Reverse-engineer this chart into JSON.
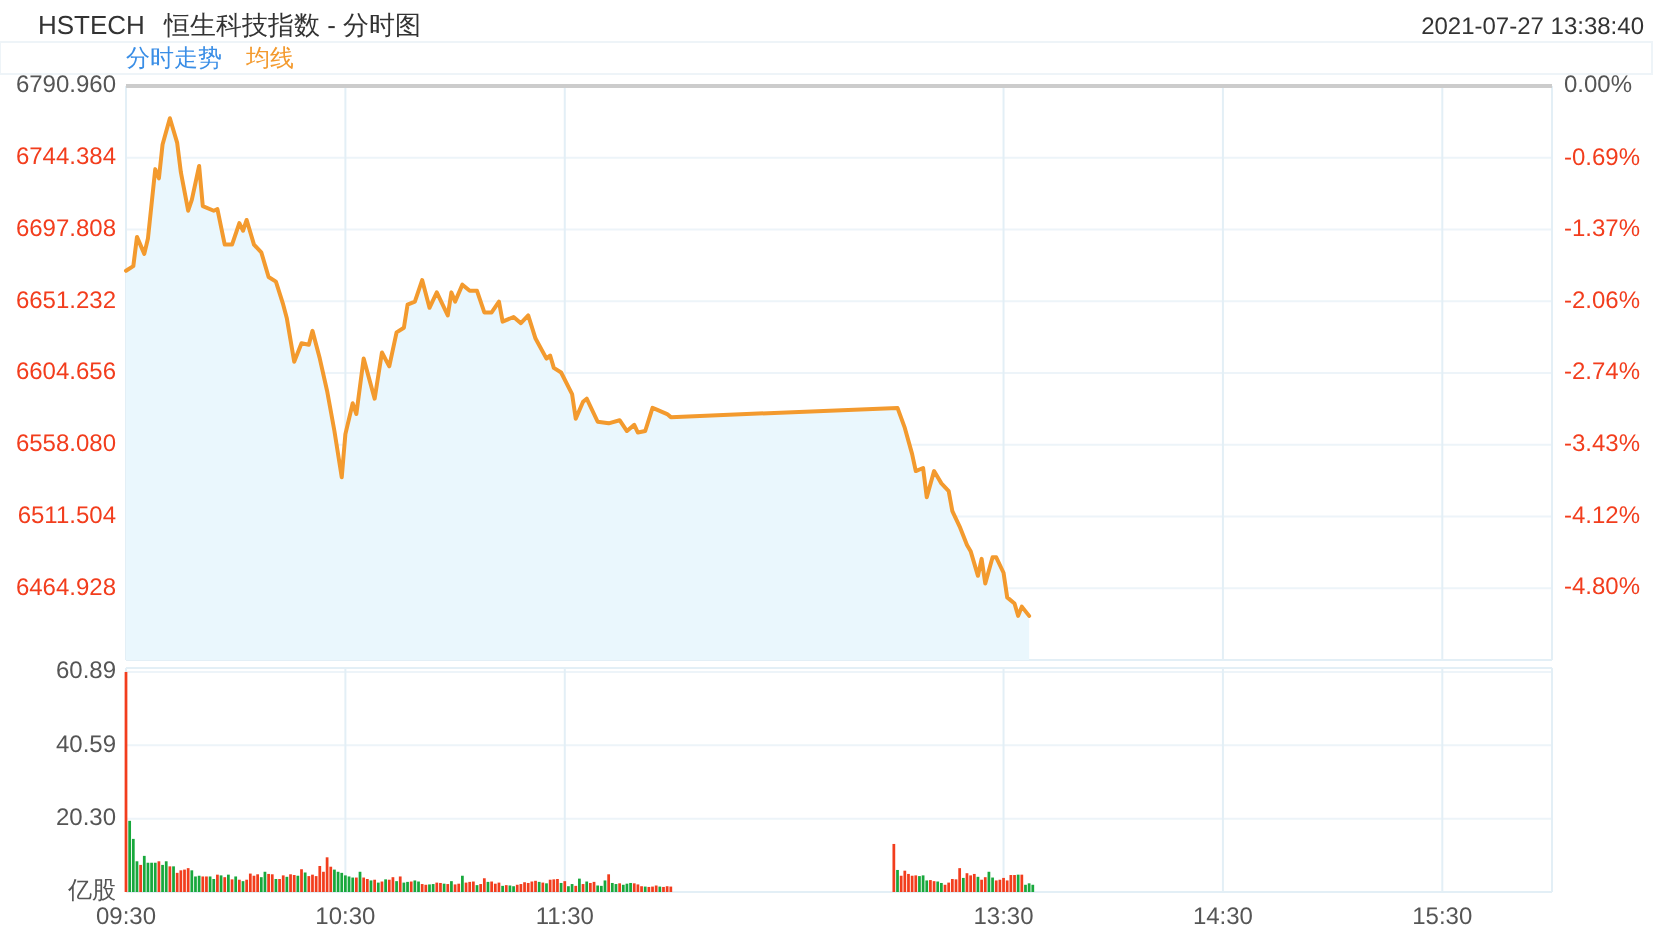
{
  "chart_data": [
    {
      "type": "area",
      "title": "HSTECH",
      "subtitle": "恒生科技指数 - 分时图",
      "annotations": [
        "2021-07-27 13:38:40",
        "分时走势"
      ],
      "grid": true,
      "tick_labels": "y",
      "xlim": [
        "2021-07-27T09:30",
        "2021-07-27T16:00"
      ],
      "xticks": [
        {
          "value": "2021-07-27T09:30",
          "label": null
        },
        {
          "value": "2021-07-27T10:30",
          "label": null
        },
        {
          "value": "2021-07-27T11:30",
          "label": null
        },
        {
          "value": "2021-07-27T13:30",
          "label": null
        },
        {
          "value": "2021-07-27T14:30",
          "label": null
        },
        {
          "value": "2021-07-27T15:30",
          "label": null
        }
      ],
      "ylim": [
        6418.352,
        6790.96
      ],
      "yticks": [
        {
          "value": 6464.928,
          "label": "6464.928"
        },
        {
          "value": 6511.504,
          "label": "6511.504"
        },
        {
          "value": 6558.08,
          "label": "6558.080"
        },
        {
          "value": 6604.656,
          "label": "6604.656"
        },
        {
          "value": 6651.232,
          "label": "6651.232"
        },
        {
          "value": 6697.808,
          "label": "6697.808"
        },
        {
          "value": 6744.384,
          "label": "6744.384"
        },
        {
          "value": 6790.96,
          "label": "6790.960"
        }
      ],
      "y2lim": [
        -5.487,
        0
      ],
      "y2ticks": [
        {
          "value": -4.8,
          "label": "-4.80%"
        },
        {
          "value": -4.12,
          "label": "-4.12%"
        },
        {
          "value": -3.43,
          "label": "-3.43%"
        },
        {
          "value": -2.74,
          "label": "-2.74%"
        },
        {
          "value": -2.06,
          "label": "-2.06%"
        },
        {
          "value": -1.37,
          "label": "-1.37%"
        },
        {
          "value": -0.69,
          "label": "-0.69%"
        },
        {
          "value": 0,
          "label": "0.00%"
        }
      ],
      "x": [
        "2021-07-27T09:30",
        "2021-07-27T09:32",
        "2021-07-27T09:33",
        "2021-07-27T09:35",
        "2021-07-27T09:36",
        "2021-07-27T09:38",
        "2021-07-27T09:39",
        "2021-07-27T09:40",
        "2021-07-27T09:42",
        "2021-07-27T09:44",
        "2021-07-27T09:45",
        "2021-07-27T09:47",
        "2021-07-27T09:48",
        "2021-07-27T09:50",
        "2021-07-27T09:51",
        "2021-07-27T09:54",
        "2021-07-27T09:55",
        "2021-07-27T09:57",
        "2021-07-27T09:59",
        "2021-07-27T10:01",
        "2021-07-27T10:02",
        "2021-07-27T10:03",
        "2021-07-27T10:05",
        "2021-07-27T10:07",
        "2021-07-27T10:09",
        "2021-07-27T10:11",
        "2021-07-27T10:13",
        "2021-07-27T10:14",
        "2021-07-27T10:16",
        "2021-07-27T10:18",
        "2021-07-27T10:20",
        "2021-07-27T10:21",
        "2021-07-27T10:23",
        "2021-07-27T10:25",
        "2021-07-27T10:27",
        "2021-07-27T10:29",
        "2021-07-27T10:30",
        "2021-07-27T10:32",
        "2021-07-27T10:33",
        "2021-07-27T10:35",
        "2021-07-27T10:38",
        "2021-07-27T10:40",
        "2021-07-27T10:42",
        "2021-07-27T10:44",
        "2021-07-27T10:46",
        "2021-07-27T10:47",
        "2021-07-27T10:49",
        "2021-07-27T10:51",
        "2021-07-27T10:53",
        "2021-07-27T10:55",
        "2021-07-27T10:58",
        "2021-07-27T10:59",
        "2021-07-27T11:00",
        "2021-07-27T11:02",
        "2021-07-27T11:04",
        "2021-07-27T11:06",
        "2021-07-27T11:08",
        "2021-07-27T11:10",
        "2021-07-27T11:12",
        "2021-07-27T11:13",
        "2021-07-27T11:16",
        "2021-07-27T11:18",
        "2021-07-27T11:20",
        "2021-07-27T11:22",
        "2021-07-27T11:25",
        "2021-07-27T11:26",
        "2021-07-27T11:27",
        "2021-07-27T11:29",
        "2021-07-27T11:32",
        "2021-07-27T11:33",
        "2021-07-27T11:35",
        "2021-07-27T11:36",
        "2021-07-27T11:39",
        "2021-07-27T11:42",
        "2021-07-27T11:45",
        "2021-07-27T11:47",
        "2021-07-27T11:49",
        "2021-07-27T11:50",
        "2021-07-27T11:52",
        "2021-07-27T11:54",
        "2021-07-27T11:55",
        "2021-07-27T11:58",
        "2021-07-27T11:59",
        "2021-07-27T13:01",
        "2021-07-27T13:03",
        "2021-07-27T13:05",
        "2021-07-27T13:06",
        "2021-07-27T13:08",
        "2021-07-27T13:09",
        "2021-07-27T13:11",
        "2021-07-27T13:13",
        "2021-07-27T13:15",
        "2021-07-27T13:16",
        "2021-07-27T13:18",
        "2021-07-27T13:20",
        "2021-07-27T13:21",
        "2021-07-27T13:23",
        "2021-07-27T13:24",
        "2021-07-27T13:25",
        "2021-07-27T13:27",
        "2021-07-27T13:28",
        "2021-07-27T13:30",
        "2021-07-27T13:31",
        "2021-07-27T13:33",
        "2021-07-27T13:34",
        "2021-07-27T13:35",
        "2021-07-27T13:37"
      ],
      "series": [
        {
          "name": "均线",
          "color": "#f39a2e",
          "values": [
            6671,
            6674,
            6693,
            6682,
            6692,
            6737,
            6731,
            6753,
            6770,
            6754,
            6735,
            6710,
            6717,
            6739,
            6713,
            6710,
            6711,
            6688,
            6688,
            6702,
            6697,
            6704,
            6688,
            6683,
            6667,
            6664,
            6649,
            6640,
            6612,
            6624,
            6623,
            6632,
            6614,
            6593,
            6567,
            6537,
            6565,
            6585,
            6578,
            6614,
            6588,
            6618,
            6609,
            6631,
            6634,
            6649,
            6651,
            6665,
            6647,
            6657,
            6642,
            6657,
            6651,
            6662,
            6658,
            6658,
            6644,
            6644,
            6651,
            6638,
            6641,
            6637,
            6642,
            6627,
            6614,
            6616,
            6608,
            6605,
            6591,
            6575,
            6586,
            6588,
            6573,
            6572,
            6574,
            6567,
            6571,
            6566,
            6567,
            6582,
            6581,
            6578,
            6576,
            6582,
            6569,
            6552,
            6541,
            6543,
            6524,
            6541,
            6533,
            6528,
            6515,
            6505,
            6493,
            6489,
            6473,
            6484,
            6468,
            6485,
            6485,
            6475,
            6459,
            6455,
            6447,
            6453,
            6447
          ]
        }
      ]
    },
    {
      "type": "bar",
      "grid": true,
      "xlim": [
        "2021-07-27T09:30",
        "2021-07-27T16:00"
      ],
      "xticks": [
        {
          "value": "2021-07-27T09:30",
          "label": "09:30"
        },
        {
          "value": "2021-07-27T10:30",
          "label": "10:30"
        },
        {
          "value": "2021-07-27T11:30",
          "label": "11:30"
        },
        {
          "value": "2021-07-27T13:30",
          "label": "13:30"
        },
        {
          "value": "2021-07-27T14:30",
          "label": "14:30"
        },
        {
          "value": "2021-07-27T15:30",
          "label": "15:30"
        }
      ],
      "ylim": [
        0,
        62
      ],
      "yticks": [
        {
          "value": 0,
          "label": "亿股"
        },
        {
          "value": 20.3,
          "label": "20.30"
        },
        40.59,
        60.89
      ],
      "x": [
        "2021-07-27T09:30",
        "2021-07-27T09:31",
        "2021-07-27T09:32",
        "2021-07-27T09:33",
        "2021-07-27T09:34",
        "2021-07-27T09:35",
        "2021-07-27T09:36",
        "2021-07-27T09:37",
        "2021-07-27T09:38",
        "2021-07-27T09:39",
        "2021-07-27T09:40",
        "2021-07-27T09:41",
        "2021-07-27T09:42",
        "2021-07-27T09:43",
        "2021-07-27T09:44",
        "2021-07-27T09:45",
        "2021-07-27T09:46",
        "2021-07-27T09:47",
        "2021-07-27T09:48",
        "2021-07-27T09:49",
        "2021-07-27T09:50",
        "2021-07-27T09:51",
        "2021-07-27T09:52",
        "2021-07-27T09:53",
        "2021-07-27T09:54",
        "2021-07-27T09:55",
        "2021-07-27T09:56",
        "2021-07-27T09:57",
        "2021-07-27T09:58",
        "2021-07-27T09:59",
        "2021-07-27T10:00",
        "2021-07-27T10:01",
        "2021-07-27T10:02",
        "2021-07-27T10:03",
        "2021-07-27T10:04",
        "2021-07-27T10:05",
        "2021-07-27T10:06",
        "2021-07-27T10:07",
        "2021-07-27T10:08",
        "2021-07-27T10:09",
        "2021-07-27T10:10",
        "2021-07-27T10:11",
        "2021-07-27T10:12",
        "2021-07-27T10:13",
        "2021-07-27T10:14",
        "2021-07-27T10:15",
        "2021-07-27T10:16",
        "2021-07-27T10:17",
        "2021-07-27T10:18",
        "2021-07-27T10:19",
        "2021-07-27T10:20",
        "2021-07-27T10:21",
        "2021-07-27T10:22",
        "2021-07-27T10:23",
        "2021-07-27T10:24",
        "2021-07-27T10:25",
        "2021-07-27T10:26",
        "2021-07-27T10:27",
        "2021-07-27T10:28",
        "2021-07-27T10:29",
        "2021-07-27T10:30",
        "2021-07-27T10:31",
        "2021-07-27T10:32",
        "2021-07-27T10:33",
        "2021-07-27T10:34",
        "2021-07-27T10:35",
        "2021-07-27T10:36",
        "2021-07-27T10:37",
        "2021-07-27T10:38",
        "2021-07-27T10:39",
        "2021-07-27T10:40",
        "2021-07-27T10:41",
        "2021-07-27T10:42",
        "2021-07-27T10:43",
        "2021-07-27T10:44",
        "2021-07-27T10:45",
        "2021-07-27T10:46",
        "2021-07-27T10:47",
        "2021-07-27T10:48",
        "2021-07-27T10:49",
        "2021-07-27T10:50",
        "2021-07-27T10:51",
        "2021-07-27T10:52",
        "2021-07-27T10:53",
        "2021-07-27T10:54",
        "2021-07-27T10:55",
        "2021-07-27T10:56",
        "2021-07-27T10:57",
        "2021-07-27T10:58",
        "2021-07-27T10:59",
        "2021-07-27T11:00",
        "2021-07-27T11:01",
        "2021-07-27T11:02",
        "2021-07-27T11:03",
        "2021-07-27T11:04",
        "2021-07-27T11:05",
        "2021-07-27T11:06",
        "2021-07-27T11:07",
        "2021-07-27T11:08",
        "2021-07-27T11:09",
        "2021-07-27T11:10",
        "2021-07-27T11:11",
        "2021-07-27T11:12",
        "2021-07-27T11:13",
        "2021-07-27T11:14",
        "2021-07-27T11:15",
        "2021-07-27T11:16",
        "2021-07-27T11:17",
        "2021-07-27T11:18",
        "2021-07-27T11:19",
        "2021-07-27T11:20",
        "2021-07-27T11:21",
        "2021-07-27T11:22",
        "2021-07-27T11:23",
        "2021-07-27T11:24",
        "2021-07-27T11:25",
        "2021-07-27T11:26",
        "2021-07-27T11:27",
        "2021-07-27T11:28",
        "2021-07-27T11:29",
        "2021-07-27T11:30",
        "2021-07-27T11:31",
        "2021-07-27T11:32",
        "2021-07-27T11:33",
        "2021-07-27T11:34",
        "2021-07-27T11:35",
        "2021-07-27T11:36",
        "2021-07-27T11:37",
        "2021-07-27T11:38",
        "2021-07-27T11:39",
        "2021-07-27T11:40",
        "2021-07-27T11:41",
        "2021-07-27T11:42",
        "2021-07-27T11:43",
        "2021-07-27T11:44",
        "2021-07-27T11:45",
        "2021-07-27T11:46",
        "2021-07-27T11:47",
        "2021-07-27T11:48",
        "2021-07-27T11:49",
        "2021-07-27T11:50",
        "2021-07-27T11:51",
        "2021-07-27T11:52",
        "2021-07-27T11:53",
        "2021-07-27T11:54",
        "2021-07-27T11:55",
        "2021-07-27T11:56",
        "2021-07-27T11:57",
        "2021-07-27T11:58",
        "2021-07-27T11:59",
        "2021-07-27T13:00",
        "2021-07-27T13:01",
        "2021-07-27T13:02",
        "2021-07-27T13:03",
        "2021-07-27T13:04",
        "2021-07-27T13:05",
        "2021-07-27T13:06",
        "2021-07-27T13:07",
        "2021-07-27T13:08",
        "2021-07-27T13:09",
        "2021-07-27T13:10",
        "2021-07-27T13:11",
        "2021-07-27T13:12",
        "2021-07-27T13:13",
        "2021-07-27T13:14",
        "2021-07-27T13:15",
        "2021-07-27T13:16",
        "2021-07-27T13:17",
        "2021-07-27T13:18",
        "2021-07-27T13:19",
        "2021-07-27T13:20",
        "2021-07-27T13:21",
        "2021-07-27T13:22",
        "2021-07-27T13:23",
        "2021-07-27T13:24",
        "2021-07-27T13:25",
        "2021-07-27T13:26",
        "2021-07-27T13:27",
        "2021-07-27T13:28",
        "2021-07-27T13:29",
        "2021-07-27T13:30",
        "2021-07-27T13:31",
        "2021-07-27T13:32",
        "2021-07-27T13:33",
        "2021-07-27T13:34",
        "2021-07-27T13:35",
        "2021-07-27T13:36",
        "2021-07-27T13:37",
        "2021-07-27T13:38"
      ],
      "values": [
        60.9,
        19.7,
        14.7,
        8.5,
        7.5,
        10,
        8.1,
        8.1,
        8.1,
        8.5,
        7.5,
        8.5,
        7.1,
        7.1,
        5.3,
        6,
        6.2,
        6.6,
        6,
        4.3,
        4.5,
        4.3,
        4.3,
        4.3,
        3.6,
        4.8,
        4.6,
        4.1,
        4.8,
        3.5,
        4.3,
        3.4,
        3,
        3.4,
        5.1,
        4.5,
        4.9,
        4.1,
        5.6,
        5,
        4.9,
        3.6,
        3.6,
        4.6,
        4.2,
        4.9,
        4.7,
        4.5,
        6.3,
        5.4,
        4.4,
        4.8,
        4.4,
        7.2,
        5.6,
        9.6,
        7,
        6.2,
        5.6,
        5.3,
        4.6,
        4.3,
        4,
        4,
        5.6,
        4,
        3.6,
        3.2,
        3.4,
        2.6,
        2.9,
        3.5,
        3.4,
        4.1,
        3,
        4.3,
        2.6,
        2.8,
        2.9,
        3.2,
        2.9,
        2.2,
        2,
        2.1,
        2.2,
        2.6,
        2.5,
        2.3,
        2.2,
        3,
        2.1,
        2.3,
        4.5,
        2.6,
        2.8,
        2.9,
        1.9,
        2.2,
        3.8,
        2.8,
        2.9,
        2.3,
        2.6,
        1.7,
        1.9,
        1.8,
        1.6,
        2,
        2.2,
        2.7,
        2.5,
        2.9,
        3.1,
        2.8,
        2.6,
        2.4,
        3.4,
        3.5,
        3.6,
        2.5,
        3,
        1.6,
        2.2,
        1.7,
        3.7,
        2.2,
        2.9,
        2.5,
        2.8,
        1.8,
        1.7,
        3.2,
        4.9,
        2.5,
        2.2,
        2.4,
        2,
        2.3,
        2.5,
        2.4,
        2.1,
        1.6,
        1.5,
        1.4,
        1.5,
        1.8,
        1.5,
        1.4,
        1.6,
        1.5,
        13.3,
        6.1,
        4.5,
        5.9,
        5,
        4.5,
        4.6,
        4.4,
        4.6,
        3.2,
        3.3,
        3,
        2.9,
        2.5,
        2,
        2.6,
        3.6,
        3.5,
        6.6,
        3.9,
        5.2,
        4.6,
        5,
        4.2,
        3.4,
        4.1,
        5.6,
        4,
        3.2,
        3.4,
        3.9,
        3.2,
        4.7,
        4.7,
        4.8,
        4.8,
        2,
        2.4,
        2
      ],
      "colors": [
        "#f23d1d",
        "#18a83c",
        "#18a83c",
        "#18a83c",
        "#f23d1d",
        "#18a83c",
        "#18a83c",
        "#18a83c",
        "#18a83c",
        "#f23d1d",
        "#18a83c",
        "#18a83c",
        "#f23d1d",
        "#18a83c",
        "#f23d1d",
        "#f23d1d",
        "#f23d1d",
        "#f23d1d",
        "#18a83c",
        "#18a83c",
        "#18a83c",
        "#f23d1d",
        "#f23d1d",
        "#18a83c",
        "#18a83c",
        "#f23d1d",
        "#18a83c",
        "#f23d1d",
        "#18a83c",
        "#f23d1d",
        "#18a83c",
        "#f23d1d",
        "#18a83c",
        "#f23d1d",
        "#f23d1d",
        "#f23d1d",
        "#f23d1d",
        "#18a83c",
        "#18a83c",
        "#f23d1d",
        "#f23d1d",
        "#18a83c",
        "#f23d1d",
        "#f23d1d",
        "#18a83c",
        "#f23d1d",
        "#f23d1d",
        "#18a83c",
        "#f23d1d",
        "#18a83c",
        "#f23d1d",
        "#f23d1d",
        "#f23d1d",
        "#f23d1d",
        "#f23d1d",
        "#f23d1d",
        "#f23d1d",
        "#18a83c",
        "#18a83c",
        "#18a83c",
        "#18a83c",
        "#18a83c",
        "#18a83c",
        "#f23d1d",
        "#18a83c",
        "#f23d1d",
        "#f23d1d",
        "#18a83c",
        "#f23d1d",
        "#18a83c",
        "#f23d1d",
        "#18a83c",
        "#f23d1d",
        "#f23d1d",
        "#18a83c",
        "#f23d1d",
        "#18a83c",
        "#18a83c",
        "#f23d1d",
        "#18a83c",
        "#18a83c",
        "#f23d1d",
        "#f23d1d",
        "#18a83c",
        "#18a83c",
        "#f23d1d",
        "#f23d1d",
        "#18a83c",
        "#f23d1d",
        "#18a83c",
        "#f23d1d",
        "#f23d1d",
        "#18a83c",
        "#f23d1d",
        "#f23d1d",
        "#f23d1d",
        "#18a83c",
        "#f23d1d",
        "#f23d1d",
        "#18a83c",
        "#f23d1d",
        "#f23d1d",
        "#f23d1d",
        "#18a83c",
        "#f23d1d",
        "#18a83c",
        "#18a83c",
        "#f23d1d",
        "#f23d1d",
        "#f23d1d",
        "#f23d1d",
        "#f23d1d",
        "#f23d1d",
        "#18a83c",
        "#f23d1d",
        "#18a83c",
        "#f23d1d",
        "#f23d1d",
        "#f23d1d",
        "#18a83c",
        "#f23d1d",
        "#18a83c",
        "#18a83c",
        "#f23d1d",
        "#18a83c",
        "#f23d1d",
        "#18a83c",
        "#f23d1d",
        "#f23d1d",
        "#18a83c",
        "#18a83c",
        "#18a83c",
        "#f23d1d",
        "#18a83c",
        "#18a83c",
        "#f23d1d",
        "#18a83c",
        "#18a83c",
        "#18a83c",
        "#f23d1d",
        "#f23d1d",
        "#f23d1d",
        "#18a83c",
        "#f23d1d",
        "#f23d1d",
        "#f23d1d",
        "#18a83c",
        "#f23d1d",
        "#f23d1d",
        "#f23d1d",
        "#f23d1d",
        "#18a83c",
        "#f23d1d",
        "#f23d1d",
        "#f23d1d",
        "#f23d1d",
        "#f23d1d",
        "#18a83c",
        "#18a83c",
        "#18a83c",
        "#f23d1d",
        "#f23d1d",
        "#18a83c",
        "#18a83c",
        "#f23d1d",
        "#f23d1d",
        "#f23d1d",
        "#f23d1d",
        "#f23d1d",
        "#18a83c",
        "#f23d1d",
        "#f23d1d",
        "#f23d1d",
        "#18a83c",
        "#f23d1d",
        "#f23d1d",
        "#18a83c",
        "#18a83c",
        "#f23d1d",
        "#f23d1d",
        "#f23d1d",
        "#f23d1d",
        "#f23d1d",
        "#f23d1d",
        "#18a83c",
        "#f23d1d",
        "#18a83c",
        "#18a83c",
        "#18a83c"
      ]
    }
  ]
}
